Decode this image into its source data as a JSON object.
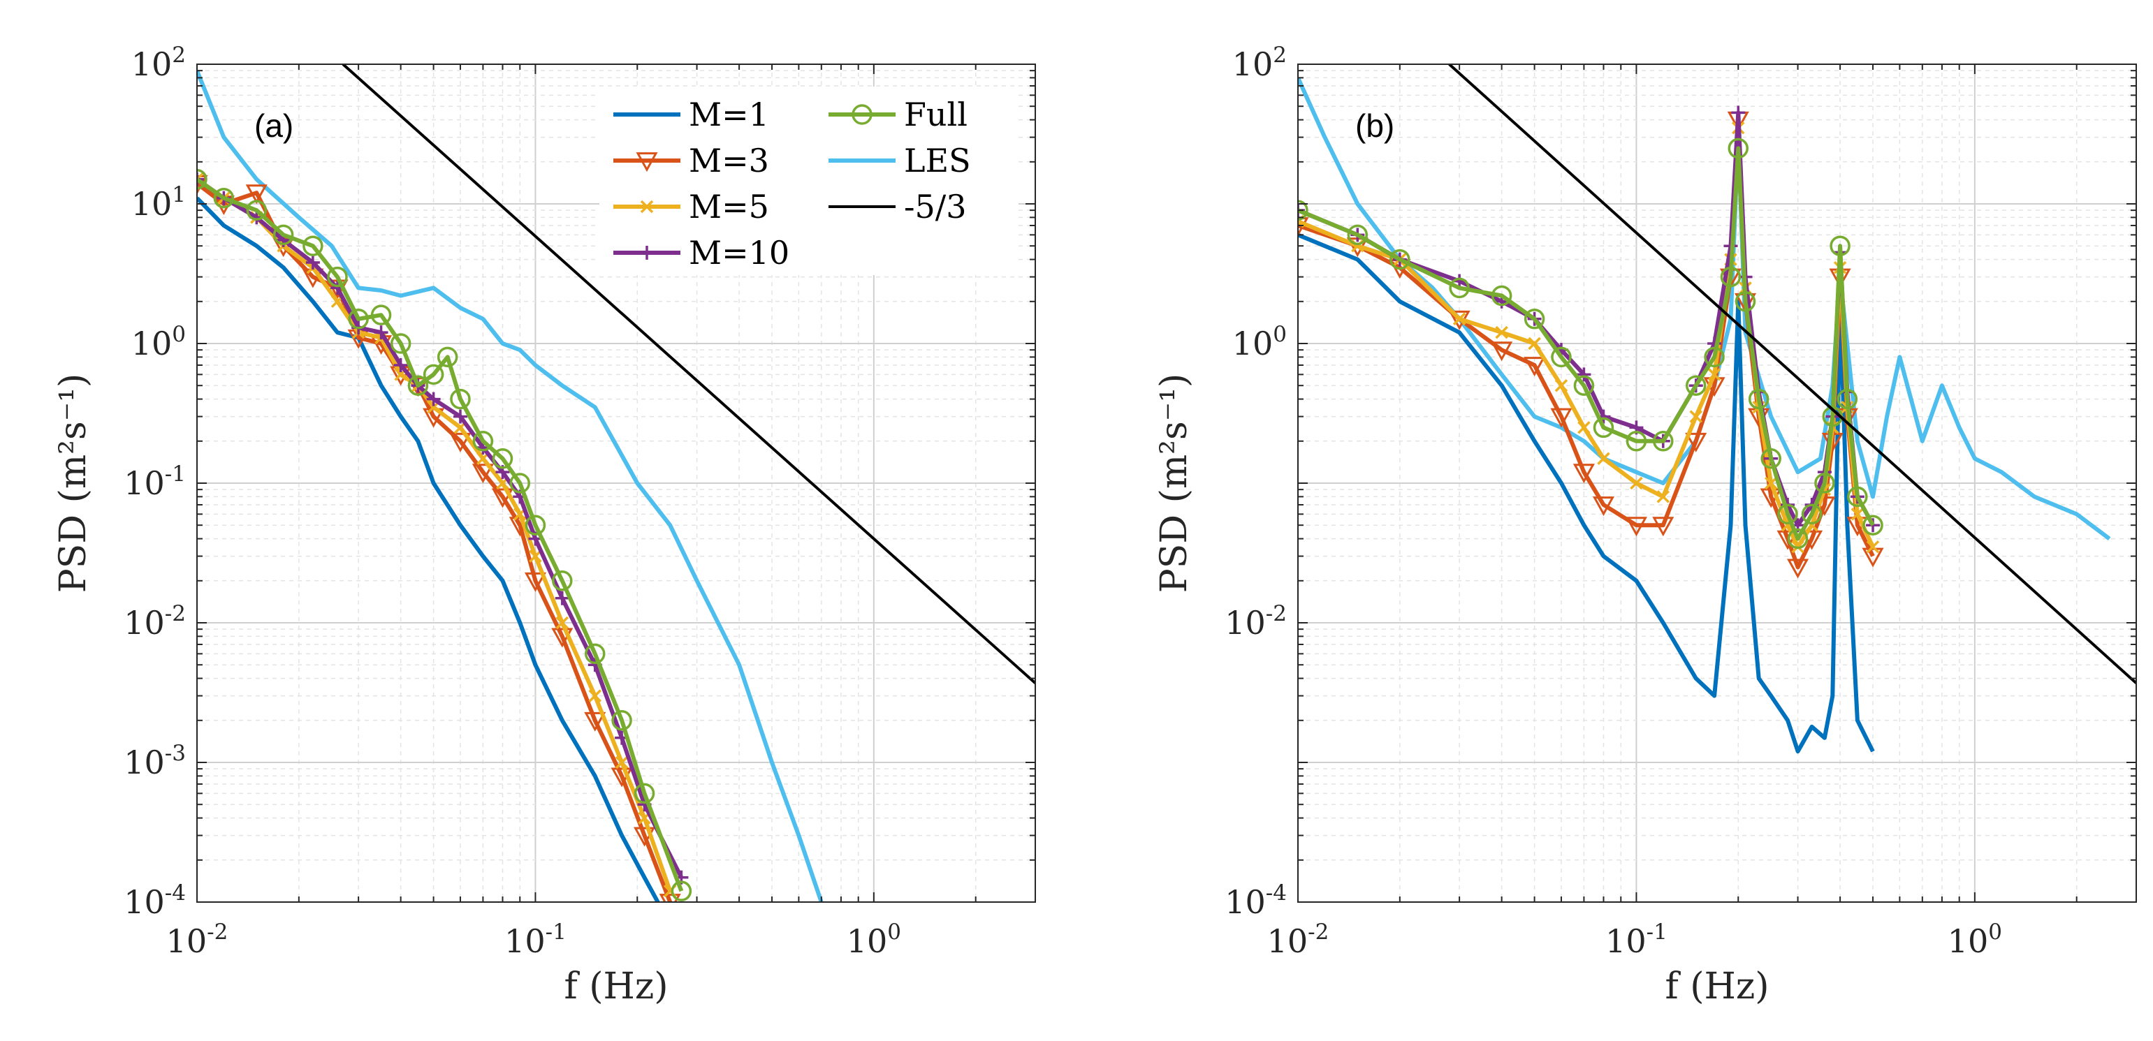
{
  "chart_data": [
    {
      "type": "line",
      "panel_label": "(a)",
      "xlabel": "f (Hz)",
      "ylabel": "PSD (m²s⁻¹)",
      "xscale": "log",
      "yscale": "log",
      "xlim": [
        0.01,
        3
      ],
      "ylim": [
        0.0001,
        100
      ],
      "grid": true,
      "legend": {
        "location": "top-right",
        "entries": [
          "M=1",
          "M=3",
          "M=5",
          "M=10",
          "Full",
          "LES",
          "-5/3"
        ]
      },
      "x_ticks": [
        "10^{-2}",
        "10^{-1}",
        "10^{0}"
      ],
      "y_ticks": [
        "10^{-4}",
        "10^{-3}",
        "10^{-2}",
        "10^{-1}",
        "10^{0}",
        "10^{1}",
        "10^{2}"
      ],
      "series": [
        {
          "name": "M=1",
          "color": "#0072BD",
          "marker": "none",
          "x": [
            0.01,
            0.012,
            0.015,
            0.018,
            0.022,
            0.026,
            0.03,
            0.035,
            0.04,
            0.045,
            0.05,
            0.06,
            0.07,
            0.08,
            0.09,
            0.1,
            0.12,
            0.15,
            0.18,
            0.21,
            0.23
          ],
          "y": [
            11,
            7,
            5,
            3.5,
            2,
            1.2,
            1.1,
            0.5,
            0.3,
            0.2,
            0.1,
            0.05,
            0.03,
            0.02,
            0.01,
            0.005,
            0.002,
            0.0008,
            0.0003,
            0.00015,
            0.0001
          ]
        },
        {
          "name": "M=3",
          "color": "#D95319",
          "marker": "triangle-down",
          "x": [
            0.01,
            0.012,
            0.015,
            0.018,
            0.022,
            0.026,
            0.03,
            0.035,
            0.04,
            0.045,
            0.05,
            0.06,
            0.07,
            0.08,
            0.09,
            0.1,
            0.12,
            0.15,
            0.18,
            0.21,
            0.25
          ],
          "y": [
            14,
            10,
            12,
            5,
            3,
            2.5,
            1.1,
            1,
            0.6,
            0.5,
            0.3,
            0.2,
            0.12,
            0.08,
            0.05,
            0.02,
            0.008,
            0.002,
            0.0008,
            0.0003,
            0.0001
          ]
        },
        {
          "name": "M=5",
          "color": "#EDB120",
          "marker": "x",
          "x": [
            0.01,
            0.012,
            0.015,
            0.018,
            0.022,
            0.026,
            0.03,
            0.035,
            0.04,
            0.045,
            0.05,
            0.06,
            0.07,
            0.08,
            0.09,
            0.1,
            0.12,
            0.15,
            0.18,
            0.21,
            0.25
          ],
          "y": [
            15,
            11,
            8,
            5,
            3.5,
            2,
            1.2,
            1.1,
            0.6,
            0.5,
            0.35,
            0.25,
            0.15,
            0.1,
            0.06,
            0.03,
            0.01,
            0.003,
            0.001,
            0.0004,
            0.00012
          ]
        },
        {
          "name": "M=10",
          "color": "#7E2F8E",
          "marker": "plus",
          "x": [
            0.01,
            0.012,
            0.015,
            0.018,
            0.022,
            0.026,
            0.03,
            0.035,
            0.04,
            0.045,
            0.05,
            0.06,
            0.07,
            0.08,
            0.09,
            0.1,
            0.12,
            0.15,
            0.18,
            0.21,
            0.27
          ],
          "y": [
            15,
            11,
            8,
            5.5,
            3.8,
            2.5,
            1.3,
            1.2,
            0.7,
            0.5,
            0.4,
            0.3,
            0.18,
            0.12,
            0.08,
            0.04,
            0.015,
            0.005,
            0.0015,
            0.0005,
            0.00015
          ]
        },
        {
          "name": "Full",
          "color": "#77AC30",
          "marker": "circle",
          "x": [
            0.01,
            0.012,
            0.015,
            0.018,
            0.022,
            0.026,
            0.03,
            0.035,
            0.04,
            0.045,
            0.05,
            0.055,
            0.06,
            0.07,
            0.08,
            0.09,
            0.1,
            0.12,
            0.15,
            0.18,
            0.21,
            0.27
          ],
          "y": [
            15,
            11,
            9,
            6,
            5,
            3,
            1.5,
            1.6,
            1.0,
            0.5,
            0.6,
            0.8,
            0.4,
            0.2,
            0.15,
            0.1,
            0.05,
            0.02,
            0.006,
            0.002,
            0.0006,
            0.00012
          ]
        },
        {
          "name": "LES",
          "color": "#4DBEEE",
          "marker": "none",
          "x": [
            0.01,
            0.012,
            0.015,
            0.02,
            0.025,
            0.03,
            0.035,
            0.04,
            0.05,
            0.06,
            0.07,
            0.08,
            0.09,
            0.1,
            0.12,
            0.15,
            0.2,
            0.25,
            0.3,
            0.4,
            0.5,
            0.6,
            0.7
          ],
          "y": [
            90,
            30,
            15,
            8,
            5,
            2.5,
            2.4,
            2.2,
            2.5,
            1.8,
            1.5,
            1.0,
            0.9,
            0.7,
            0.5,
            0.35,
            0.1,
            0.05,
            0.02,
            0.005,
            0.001,
            0.0003,
            0.0001
          ]
        },
        {
          "name": "-5/3",
          "color": "#000000",
          "marker": "none",
          "x": [
            0.027,
            3
          ],
          "y": [
            100,
            0.0037
          ]
        }
      ]
    },
    {
      "type": "line",
      "panel_label": "(b)",
      "xlabel": "f (Hz)",
      "ylabel": "PSD (m²s⁻¹)",
      "xscale": "log",
      "yscale": "log",
      "xlim": [
        0.01,
        3
      ],
      "ylim": [
        0.0001,
        100
      ],
      "grid": true,
      "x_ticks": [
        "10^{-2}",
        "10^{-1}",
        "10^{0}"
      ],
      "y_ticks": [
        "10^{-4}",
        "10^{-2}",
        "10^{0}",
        "10^{2}"
      ],
      "series": [
        {
          "name": "M=1",
          "color": "#0072BD",
          "marker": "none",
          "x": [
            0.01,
            0.015,
            0.02,
            0.03,
            0.04,
            0.05,
            0.06,
            0.07,
            0.08,
            0.1,
            0.12,
            0.15,
            0.17,
            0.19,
            0.2,
            0.21,
            0.23,
            0.25,
            0.28,
            0.3,
            0.33,
            0.36,
            0.38,
            0.4,
            0.42,
            0.45,
            0.5
          ],
          "y": [
            6,
            4,
            2,
            1.2,
            0.5,
            0.2,
            0.1,
            0.05,
            0.03,
            0.02,
            0.01,
            0.004,
            0.003,
            0.05,
            2,
            0.05,
            0.004,
            0.003,
            0.002,
            0.0012,
            0.0018,
            0.0015,
            0.003,
            2,
            0.05,
            0.002,
            0.0012
          ]
        },
        {
          "name": "M=3",
          "color": "#D95319",
          "marker": "triangle-down",
          "x": [
            0.01,
            0.015,
            0.02,
            0.03,
            0.04,
            0.05,
            0.06,
            0.07,
            0.08,
            0.1,
            0.12,
            0.15,
            0.17,
            0.19,
            0.2,
            0.21,
            0.23,
            0.25,
            0.28,
            0.3,
            0.33,
            0.36,
            0.38,
            0.4,
            0.42,
            0.45,
            0.5
          ],
          "y": [
            7,
            5,
            3.5,
            1.5,
            0.9,
            0.7,
            0.3,
            0.12,
            0.07,
            0.05,
            0.05,
            0.2,
            0.5,
            3,
            40,
            2,
            0.3,
            0.08,
            0.04,
            0.025,
            0.04,
            0.07,
            0.2,
            3,
            0.3,
            0.05,
            0.03
          ]
        },
        {
          "name": "M=5",
          "color": "#EDB120",
          "marker": "x",
          "x": [
            0.01,
            0.015,
            0.02,
            0.03,
            0.04,
            0.05,
            0.06,
            0.07,
            0.08,
            0.1,
            0.12,
            0.15,
            0.17,
            0.19,
            0.2,
            0.21,
            0.23,
            0.25,
            0.28,
            0.3,
            0.33,
            0.36,
            0.38,
            0.4,
            0.42,
            0.45,
            0.5
          ],
          "y": [
            7.5,
            5,
            4,
            1.5,
            1.2,
            1.0,
            0.5,
            0.25,
            0.15,
            0.1,
            0.08,
            0.3,
            0.6,
            4,
            35,
            2.5,
            0.35,
            0.1,
            0.05,
            0.035,
            0.05,
            0.09,
            0.25,
            3.5,
            0.35,
            0.06,
            0.035
          ]
        },
        {
          "name": "M=10",
          "color": "#7E2F8E",
          "marker": "plus",
          "x": [
            0.01,
            0.015,
            0.02,
            0.03,
            0.04,
            0.05,
            0.06,
            0.07,
            0.08,
            0.1,
            0.12,
            0.15,
            0.17,
            0.19,
            0.2,
            0.21,
            0.23,
            0.25,
            0.28,
            0.3,
            0.33,
            0.36,
            0.38,
            0.4,
            0.42,
            0.45,
            0.5
          ],
          "y": [
            9,
            6,
            4,
            2.8,
            2,
            1.5,
            0.9,
            0.6,
            0.3,
            0.25,
            0.2,
            0.5,
            1,
            5,
            45,
            3,
            0.45,
            0.15,
            0.07,
            0.05,
            0.07,
            0.12,
            0.3,
            4.5,
            0.45,
            0.08,
            0.05
          ]
        },
        {
          "name": "Full",
          "color": "#77AC30",
          "marker": "circle",
          "x": [
            0.01,
            0.015,
            0.02,
            0.03,
            0.04,
            0.05,
            0.06,
            0.07,
            0.08,
            0.1,
            0.12,
            0.15,
            0.17,
            0.19,
            0.2,
            0.21,
            0.23,
            0.25,
            0.28,
            0.3,
            0.33,
            0.36,
            0.38,
            0.4,
            0.42,
            0.45,
            0.5
          ],
          "y": [
            9,
            6,
            4,
            2.5,
            2.2,
            1.5,
            0.8,
            0.5,
            0.25,
            0.2,
            0.2,
            0.5,
            0.8,
            3,
            25,
            2,
            0.4,
            0.15,
            0.06,
            0.04,
            0.06,
            0.1,
            0.3,
            5,
            0.4,
            0.08,
            0.05
          ]
        },
        {
          "name": "LES",
          "color": "#4DBEEE",
          "marker": "none",
          "x": [
            0.01,
            0.012,
            0.015,
            0.02,
            0.025,
            0.03,
            0.04,
            0.05,
            0.06,
            0.07,
            0.08,
            0.1,
            0.12,
            0.15,
            0.17,
            0.19,
            0.2,
            0.21,
            0.25,
            0.3,
            0.35,
            0.38,
            0.4,
            0.45,
            0.5,
            0.55,
            0.6,
            0.7,
            0.8,
            0.9,
            1.0,
            1.2,
            1.5,
            2.0,
            2.5
          ],
          "y": [
            80,
            30,
            10,
            4,
            2.5,
            1.5,
            0.6,
            0.3,
            0.25,
            0.2,
            0.15,
            0.12,
            0.1,
            0.2,
            0.5,
            1.5,
            30,
            1.2,
            0.3,
            0.12,
            0.15,
            0.5,
            3,
            0.2,
            0.08,
            0.3,
            0.8,
            0.2,
            0.5,
            0.25,
            0.15,
            0.12,
            0.08,
            0.06,
            0.04
          ]
        },
        {
          "name": "-5/3",
          "color": "#000000",
          "marker": "none",
          "x": [
            0.028,
            3
          ],
          "y": [
            100,
            0.0037
          ]
        }
      ]
    }
  ]
}
